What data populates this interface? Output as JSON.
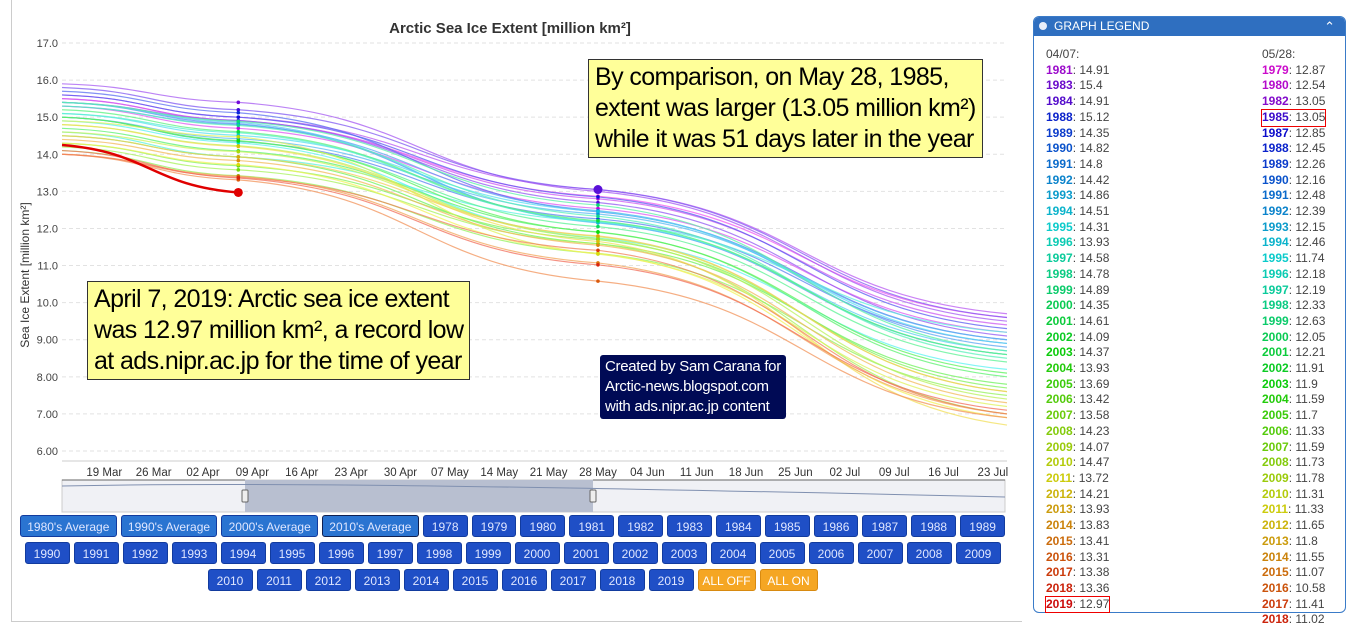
{
  "chart_data": {
    "type": "line",
    "title": "Arctic Sea Ice Extent [million km²]",
    "ylabel": "Sea Ice Extent [million km²]",
    "xlabel": "",
    "ylim": [
      6,
      17
    ],
    "yticks": [
      "6.00",
      "7.00",
      "8.00",
      "9.00",
      "10.0",
      "11.0",
      "12.0",
      "13.0",
      "14.0",
      "15.0",
      "16.0",
      "17.0"
    ],
    "xlim": [
      "03-13",
      "07-25"
    ],
    "xticks": [
      [
        "03-19",
        "19 Mar"
      ],
      [
        "03-26",
        "26 Mar"
      ],
      [
        "04-02",
        "02 Apr"
      ],
      [
        "04-09",
        "09 Apr"
      ],
      [
        "04-16",
        "16 Apr"
      ],
      [
        "04-23",
        "23 Apr"
      ],
      [
        "04-30",
        "30 Apr"
      ],
      [
        "05-07",
        "07 May"
      ],
      [
        "05-14",
        "14 May"
      ],
      [
        "05-21",
        "21 May"
      ],
      [
        "05-28",
        "28 May"
      ],
      [
        "06-04",
        "04 Jun"
      ],
      [
        "06-11",
        "11 Jun"
      ],
      [
        "06-18",
        "18 Jun"
      ],
      [
        "06-25",
        "25 Jun"
      ],
      [
        "07-02",
        "02 Jul"
      ],
      [
        "07-09",
        "09 Jul"
      ],
      [
        "07-16",
        "16 Jul"
      ],
      [
        "07-23",
        "23 Jul"
      ]
    ],
    "grid": true,
    "x": [
      "03-13",
      "04-07",
      "05-28",
      "07-25"
    ],
    "series": [
      {
        "name": "1979",
        "values": [
          15.5,
          14.9,
          12.87,
          9.6
        ]
      },
      {
        "name": "1980",
        "values": [
          15.3,
          14.7,
          12.54,
          9.2
        ]
      },
      {
        "name": "1981",
        "values": [
          15.5,
          14.91,
          12.8,
          9.4
        ]
      },
      {
        "name": "1982",
        "values": [
          15.6,
          15.0,
          13.05,
          9.7
        ]
      },
      {
        "name": "1983",
        "values": [
          15.9,
          15.4,
          13.0,
          9.5
        ]
      },
      {
        "name": "1984",
        "values": [
          15.4,
          14.91,
          12.7,
          9.1
        ]
      },
      {
        "name": "1985",
        "values": [
          15.8,
          15.2,
          13.05,
          9.6
        ]
      },
      {
        "name": "1987",
        "values": [
          15.6,
          15.0,
          12.85,
          9.3
        ]
      },
      {
        "name": "1988",
        "values": [
          15.7,
          15.12,
          12.45,
          9.0
        ]
      },
      {
        "name": "1989",
        "values": [
          15.0,
          14.35,
          12.26,
          8.9
        ]
      },
      {
        "name": "1990",
        "values": [
          15.4,
          14.82,
          12.16,
          8.6
        ]
      },
      {
        "name": "1991",
        "values": [
          15.3,
          14.8,
          12.48,
          8.8
        ]
      },
      {
        "name": "1992",
        "values": [
          15.0,
          14.42,
          12.39,
          9.0
        ]
      },
      {
        "name": "1993",
        "values": [
          15.4,
          14.86,
          12.15,
          8.7
        ]
      },
      {
        "name": "1994",
        "values": [
          15.1,
          14.51,
          12.46,
          8.9
        ]
      },
      {
        "name": "1995",
        "values": [
          14.9,
          14.31,
          11.74,
          8.2
        ]
      },
      {
        "name": "1996",
        "values": [
          14.6,
          13.93,
          12.18,
          9.2
        ]
      },
      {
        "name": "1997",
        "values": [
          15.1,
          14.58,
          12.19,
          8.6
        ]
      },
      {
        "name": "1998",
        "values": [
          15.3,
          14.78,
          12.33,
          8.5
        ]
      },
      {
        "name": "1999",
        "values": [
          15.4,
          14.89,
          12.63,
          8.7
        ]
      },
      {
        "name": "2000",
        "values": [
          15.0,
          14.35,
          12.05,
          8.4
        ]
      },
      {
        "name": "2001",
        "values": [
          15.2,
          14.61,
          12.21,
          8.6
        ]
      },
      {
        "name": "2002",
        "values": [
          14.7,
          14.09,
          11.91,
          8.0
        ]
      },
      {
        "name": "2003",
        "values": [
          15.0,
          14.37,
          11.9,
          8.1
        ]
      },
      {
        "name": "2004",
        "values": [
          14.5,
          13.93,
          11.59,
          7.8
        ]
      },
      {
        "name": "2005",
        "values": [
          14.3,
          13.69,
          11.7,
          7.7
        ]
      },
      {
        "name": "2006",
        "values": [
          14.1,
          13.42,
          11.33,
          7.5
        ]
      },
      {
        "name": "2007",
        "values": [
          14.2,
          13.58,
          11.59,
          7.0
        ]
      },
      {
        "name": "2008",
        "values": [
          14.8,
          14.23,
          11.73,
          7.4
        ]
      },
      {
        "name": "2009",
        "values": [
          14.6,
          14.07,
          11.78,
          7.6
        ]
      },
      {
        "name": "2010",
        "values": [
          14.9,
          14.47,
          11.31,
          7.2
        ]
      },
      {
        "name": "2011",
        "values": [
          14.3,
          13.72,
          11.33,
          6.9
        ]
      },
      {
        "name": "2012",
        "values": [
          14.8,
          14.21,
          11.65,
          6.7
        ]
      },
      {
        "name": "2013",
        "values": [
          14.5,
          13.93,
          11.8,
          7.6
        ]
      },
      {
        "name": "2014",
        "values": [
          14.4,
          13.83,
          11.55,
          7.3
        ]
      },
      {
        "name": "2015",
        "values": [
          14.0,
          13.41,
          11.07,
          7.0
        ]
      },
      {
        "name": "2016",
        "values": [
          14.0,
          13.31,
          10.58,
          6.9
        ]
      },
      {
        "name": "2017",
        "values": [
          14.0,
          13.38,
          11.41,
          7.0
        ]
      },
      {
        "name": "2018",
        "values": [
          14.1,
          13.36,
          11.02,
          7.1
        ]
      },
      {
        "name": "2019",
        "values": [
          14.25,
          12.97,
          null,
          null
        ]
      }
    ],
    "highlight": {
      "series_2019_color": "#e00000",
      "point_1985": {
        "x": "05-28",
        "value": 13.05,
        "color": "#5a10d8"
      }
    }
  },
  "annotations": {
    "may_note": [
      "By comparison, on May 28, 1985,",
      "extent was larger (13.05 million km²)",
      "while it was 51 days later in the year"
    ],
    "april_note": [
      "April 7, 2019: Arctic sea ice extent",
      "was 12.97 million km², a record low",
      "at ads.nipr.ac.jp for the time of year"
    ],
    "credit": [
      "Created by Sam Carana for",
      "Arctic-news.blogspot.com",
      "with ads.nipr.ac.jp content"
    ]
  },
  "buttons": {
    "averages": [
      "1980's Average",
      "1990's Average",
      "2000's Average",
      "2010's Average"
    ],
    "row1_years": [
      "1978",
      "1979",
      "1980",
      "1981",
      "1982",
      "1983",
      "1984",
      "1985",
      "1986",
      "1987",
      "1988",
      "1989"
    ],
    "row2_years": [
      "1990",
      "1991",
      "1992",
      "1993",
      "1994",
      "1995",
      "1996",
      "1997",
      "1998",
      "1999",
      "2000",
      "2001",
      "2002",
      "2003",
      "2004",
      "2005",
      "2006",
      "2007",
      "2008",
      "2009"
    ],
    "row3_years": [
      "2010",
      "2011",
      "2012",
      "2013",
      "2014",
      "2015",
      "2016",
      "2017",
      "2018",
      "2019"
    ],
    "all_off": "ALL OFF",
    "all_on": "ALL ON"
  },
  "legend": {
    "title": "GRAPH LEGEND",
    "left_date": "04/07:",
    "right_date": "05/28:",
    "left": [
      [
        "1981",
        "14.91"
      ],
      [
        "1983",
        "15.4"
      ],
      [
        "1984",
        "14.91"
      ],
      [
        "1988",
        "15.12"
      ],
      [
        "1989",
        "14.35"
      ],
      [
        "1990",
        "14.82"
      ],
      [
        "1991",
        "14.8"
      ],
      [
        "1992",
        "14.42"
      ],
      [
        "1993",
        "14.86"
      ],
      [
        "1994",
        "14.51"
      ],
      [
        "1995",
        "14.31"
      ],
      [
        "1996",
        "13.93"
      ],
      [
        "1997",
        "14.58"
      ],
      [
        "1998",
        "14.78"
      ],
      [
        "1999",
        "14.89"
      ],
      [
        "2000",
        "14.35"
      ],
      [
        "2001",
        "14.61"
      ],
      [
        "2002",
        "14.09"
      ],
      [
        "2003",
        "14.37"
      ],
      [
        "2004",
        "13.93"
      ],
      [
        "2005",
        "13.69"
      ],
      [
        "2006",
        "13.42"
      ],
      [
        "2007",
        "13.58"
      ],
      [
        "2008",
        "14.23"
      ],
      [
        "2009",
        "14.07"
      ],
      [
        "2010",
        "14.47"
      ],
      [
        "2011",
        "13.72"
      ],
      [
        "2012",
        "14.21"
      ],
      [
        "2013",
        "13.93"
      ],
      [
        "2014",
        "13.83"
      ],
      [
        "2015",
        "13.41"
      ],
      [
        "2016",
        "13.31"
      ],
      [
        "2017",
        "13.38"
      ],
      [
        "2018",
        "13.36"
      ],
      [
        "2019",
        "12.97"
      ]
    ],
    "right": [
      [
        "1979",
        "12.87"
      ],
      [
        "1980",
        "12.54"
      ],
      [
        "1982",
        "13.05"
      ],
      [
        "1985",
        "13.05"
      ],
      [
        "1987",
        "12.85"
      ],
      [
        "1988",
        "12.45"
      ],
      [
        "1989",
        "12.26"
      ],
      [
        "1990",
        "12.16"
      ],
      [
        "1991",
        "12.48"
      ],
      [
        "1992",
        "12.39"
      ],
      [
        "1993",
        "12.15"
      ],
      [
        "1994",
        "12.46"
      ],
      [
        "1995",
        "11.74"
      ],
      [
        "1996",
        "12.18"
      ],
      [
        "1997",
        "12.19"
      ],
      [
        "1998",
        "12.33"
      ],
      [
        "1999",
        "12.63"
      ],
      [
        "2000",
        "12.05"
      ],
      [
        "2001",
        "12.21"
      ],
      [
        "2002",
        "11.91"
      ],
      [
        "2003",
        "11.9"
      ],
      [
        "2004",
        "11.59"
      ],
      [
        "2005",
        "11.7"
      ],
      [
        "2006",
        "11.33"
      ],
      [
        "2007",
        "11.59"
      ],
      [
        "2008",
        "11.73"
      ],
      [
        "2009",
        "11.78"
      ],
      [
        "2010",
        "11.31"
      ],
      [
        "2011",
        "11.33"
      ],
      [
        "2012",
        "11.65"
      ],
      [
        "2013",
        "11.8"
      ],
      [
        "2014",
        "11.55"
      ],
      [
        "2015",
        "11.07"
      ],
      [
        "2016",
        "10.58"
      ],
      [
        "2017",
        "11.41"
      ],
      [
        "2018",
        "11.02"
      ]
    ],
    "highlighted_left": "2019",
    "highlighted_right": "1985"
  }
}
